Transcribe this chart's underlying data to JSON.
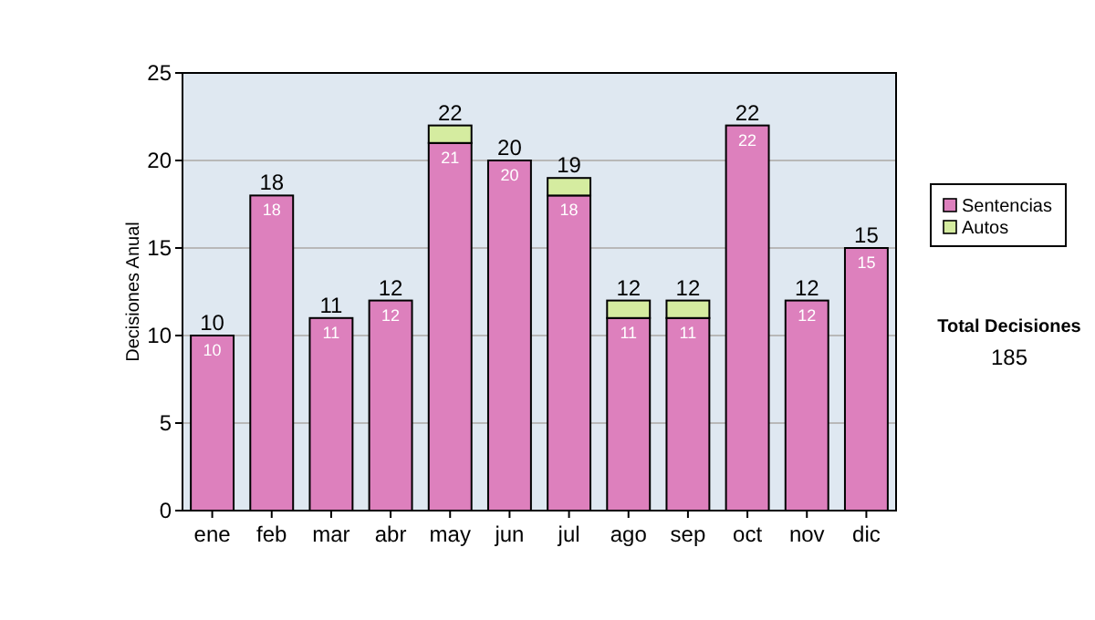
{
  "chart_data": {
    "type": "bar",
    "ylabel": "Decisiones Anual",
    "categories": [
      "ene",
      "feb",
      "mar",
      "abr",
      "may",
      "jun",
      "jul",
      "ago",
      "sep",
      "oct",
      "nov",
      "dic"
    ],
    "stacked": true,
    "series": [
      {
        "name": "Sentencias",
        "color": "#dd80bd",
        "values": [
          10,
          18,
          11,
          12,
          21,
          20,
          18,
          11,
          11,
          22,
          12,
          15
        ],
        "value_labels": [
          "10",
          "18",
          "11",
          "12",
          "21",
          "20",
          "18",
          "11",
          "11",
          "22",
          "12",
          "15"
        ]
      },
      {
        "name": "Autos",
        "color": "#d5eca0",
        "values": [
          null,
          null,
          null,
          null,
          1,
          null,
          1,
          1,
          1,
          null,
          null,
          null
        ]
      }
    ],
    "totals": [
      "10",
      "18",
      "11",
      "12",
      "22",
      "20",
      "19",
      "12",
      "12",
      "22",
      "12",
      "15"
    ],
    "ylim": [
      0,
      25
    ],
    "yticks": [
      0,
      5,
      10,
      15,
      20,
      25
    ],
    "grid": "y",
    "legend": "right",
    "annotations": [
      "Total Decisiones",
      "185"
    ]
  }
}
